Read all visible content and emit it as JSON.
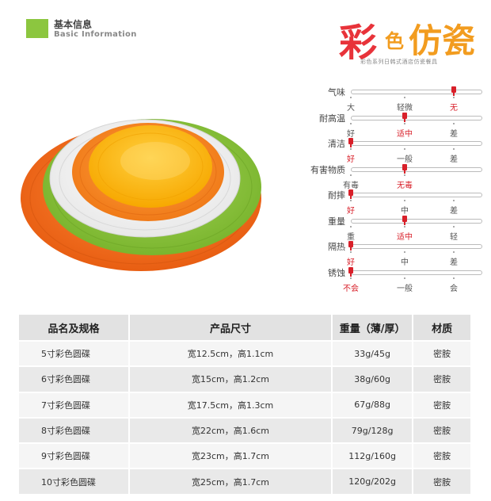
{
  "header": {
    "title_cn": "基本信息",
    "title_en": "Basic Information",
    "accent_color": "#8cc63f"
  },
  "brand": {
    "chars": [
      "彩",
      "色",
      "仿",
      "瓷"
    ],
    "subtitle": "彩色系列日韩式酒店仿瓷餐具",
    "colors": [
      "#e8333a",
      "#f29c1f"
    ]
  },
  "plate_colors": [
    "#f07020",
    "#8ec63f",
    "#ffffff",
    "#f58220",
    "#ffc20e"
  ],
  "properties": [
    {
      "label": "气味",
      "options": [
        "大",
        "轻微",
        "无"
      ],
      "selected": 2
    },
    {
      "label": "耐高温",
      "options": [
        "好",
        "适中",
        "差"
      ],
      "selected": 1
    },
    {
      "label": "清洁",
      "options": [
        "好",
        "一般",
        "差"
      ],
      "selected": 0
    },
    {
      "label": "有害物质",
      "options": [
        "有毒",
        "无毒"
      ],
      "selected": 1
    },
    {
      "label": "耐摔",
      "options": [
        "好",
        "中",
        "差"
      ],
      "selected": 0
    },
    {
      "label": "重量",
      "options": [
        "重",
        "适中",
        "轻"
      ],
      "selected": 1
    },
    {
      "label": "隔热",
      "options": [
        "好",
        "中",
        "差"
      ],
      "selected": 0
    },
    {
      "label": "锈蚀",
      "options": [
        "不会",
        "一般",
        "会"
      ],
      "selected": 0
    }
  ],
  "table": {
    "headers": [
      "品名及规格",
      "产品尺寸",
      "重量（薄/厚）",
      "材质"
    ],
    "rows": [
      [
        "5寸彩色圆碟",
        "宽12.5cm，高1.1cm",
        "33g/45g",
        "密胺"
      ],
      [
        "6寸彩色圆碟",
        "宽15cm，高1.2cm",
        "38g/60g",
        "密胺"
      ],
      [
        "7寸彩色圆碟",
        "宽17.5cm，高1.3cm",
        "67g/88g",
        "密胺"
      ],
      [
        "8寸彩色圆碟",
        "宽22cm，高1.6cm",
        "79g/128g",
        "密胺"
      ],
      [
        "9寸彩色圆碟",
        "宽23cm，高1.7cm",
        "112g/160g",
        "密胺"
      ],
      [
        "10寸彩色圆碟",
        "宽25cm，高1.7cm",
        "120g/202g",
        "密胺"
      ]
    ]
  }
}
